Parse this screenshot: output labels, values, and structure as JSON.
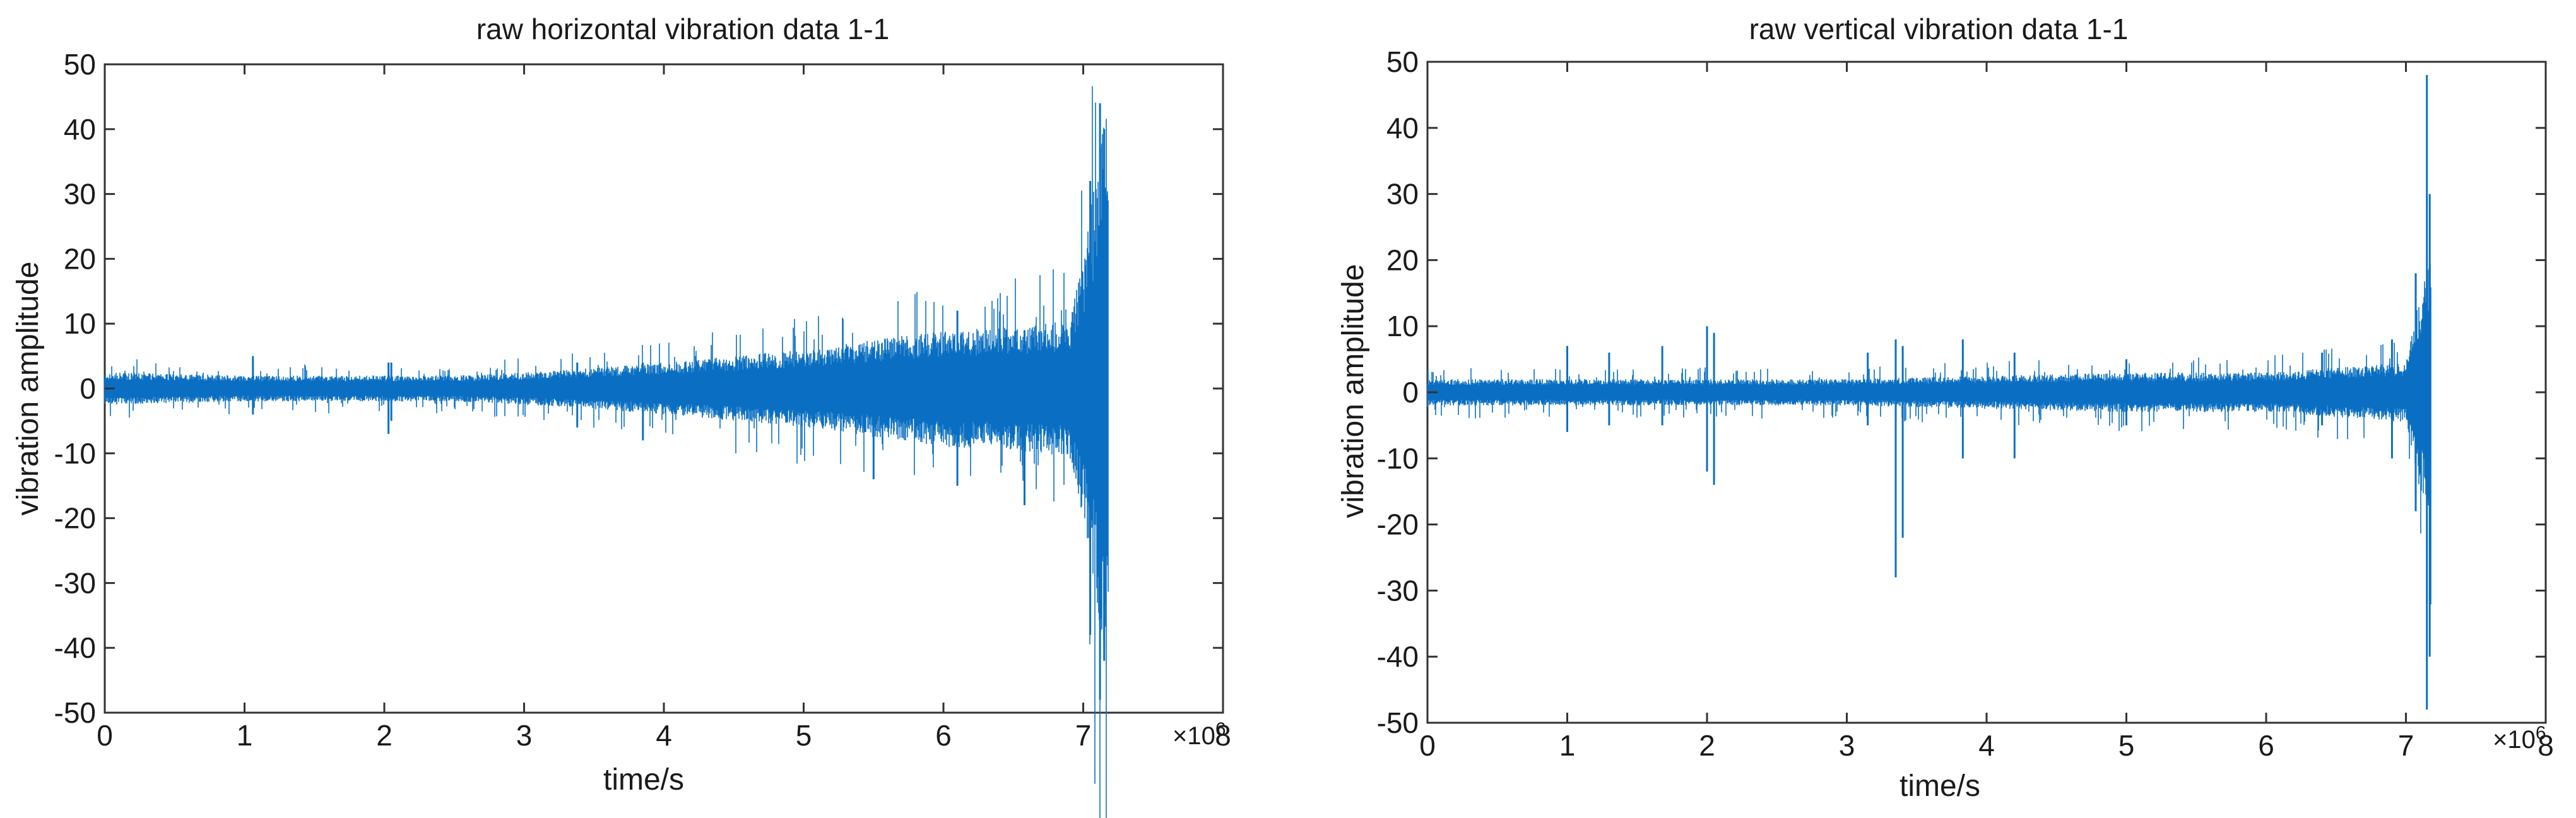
{
  "page": {
    "background_color": "#ffffff",
    "line_color": "#0a6fc2",
    "axis_color": "#333333",
    "text_color": "#1a1a1a"
  },
  "chart_data": [
    {
      "type": "line",
      "title": "raw horizontal vibration data 1-1",
      "xlabel": "time/s",
      "ylabel": "vibration amplitude",
      "x_multiplier_label": "×10",
      "x_multiplier_exponent": "6",
      "xlim": [
        0,
        8
      ],
      "ylim": [
        -50,
        50
      ],
      "x_ticks": [
        "0",
        "1",
        "2",
        "3",
        "4",
        "5",
        "6",
        "7",
        "8"
      ],
      "y_ticks": [
        "50",
        "40",
        "30",
        "20",
        "10",
        "0",
        "-10",
        "-20",
        "-30",
        "-40",
        "-50"
      ],
      "grid": false,
      "series": [
        {
          "x_end": 7.18,
          "envelope": [
            {
              "x": 0.0,
              "amp": 2.5
            },
            {
              "x": 1.0,
              "amp": 2.0
            },
            {
              "x": 2.0,
              "amp": 2.0
            },
            {
              "x": 2.5,
              "amp": 2.0
            },
            {
              "x": 3.0,
              "amp": 2.5
            },
            {
              "x": 3.5,
              "amp": 3.2
            },
            {
              "x": 4.0,
              "amp": 4.0
            },
            {
              "x": 4.5,
              "amp": 5.0
            },
            {
              "x": 5.0,
              "amp": 6.0
            },
            {
              "x": 5.5,
              "amp": 7.5
            },
            {
              "x": 6.0,
              "amp": 9.0
            },
            {
              "x": 6.5,
              "amp": 9.5
            },
            {
              "x": 6.9,
              "amp": 10.5
            },
            {
              "x": 7.02,
              "amp": 22.0
            },
            {
              "x": 7.1,
              "amp": 35.0
            },
            {
              "x": 7.18,
              "amp": 44.0
            }
          ],
          "spikes": [
            {
              "x": 1.06,
              "min": -4,
              "max": 5
            },
            {
              "x": 2.03,
              "min": -7,
              "max": 4
            },
            {
              "x": 2.05,
              "min": -5,
              "max": 4
            },
            {
              "x": 3.38,
              "min": -6,
              "max": 4
            },
            {
              "x": 3.85,
              "min": -8,
              "max": 4
            },
            {
              "x": 5.5,
              "min": -14,
              "max": 6
            },
            {
              "x": 6.1,
              "min": -15,
              "max": 12
            },
            {
              "x": 6.58,
              "min": -18,
              "max": 9
            },
            {
              "x": 7.05,
              "min": -38,
              "max": 32
            },
            {
              "x": 7.12,
              "min": -48,
              "max": 44
            },
            {
              "x": 7.15,
              "min": -42,
              "max": 40
            }
          ]
        }
      ]
    },
    {
      "type": "line",
      "title": "raw vertical vibration data 1-1",
      "xlabel": "time/s",
      "ylabel": "vibration amplitude",
      "x_multiplier_label": "×10",
      "x_multiplier_exponent": "6",
      "xlim": [
        0,
        8
      ],
      "ylim": [
        -50,
        50
      ],
      "x_ticks": [
        "0",
        "1",
        "2",
        "3",
        "4",
        "5",
        "6",
        "7",
        "8"
      ],
      "y_ticks": [
        "50",
        "40",
        "30",
        "20",
        "10",
        "0",
        "-10",
        "-20",
        "-30",
        "-40",
        "-50"
      ],
      "grid": false,
      "series": [
        {
          "x_end": 7.18,
          "envelope": [
            {
              "x": 0.0,
              "amp": 2.0
            },
            {
              "x": 1.0,
              "amp": 2.0
            },
            {
              "x": 2.0,
              "amp": 2.0
            },
            {
              "x": 3.0,
              "amp": 2.0
            },
            {
              "x": 4.0,
              "amp": 2.5
            },
            {
              "x": 5.0,
              "amp": 3.0
            },
            {
              "x": 6.0,
              "amp": 3.0
            },
            {
              "x": 7.0,
              "amp": 4.5
            },
            {
              "x": 7.1,
              "amp": 15.0
            },
            {
              "x": 7.18,
              "amp": 20.0
            }
          ],
          "spikes": [
            {
              "x": 1.0,
              "min": -6,
              "max": 7
            },
            {
              "x": 1.3,
              "min": -5,
              "max": 6
            },
            {
              "x": 1.68,
              "min": -5,
              "max": 7
            },
            {
              "x": 2.0,
              "min": -12,
              "max": 10
            },
            {
              "x": 2.05,
              "min": -14,
              "max": 9
            },
            {
              "x": 3.15,
              "min": -5,
              "max": 6
            },
            {
              "x": 3.35,
              "min": -28,
              "max": 8
            },
            {
              "x": 3.4,
              "min": -22,
              "max": 7
            },
            {
              "x": 3.83,
              "min": -10,
              "max": 8
            },
            {
              "x": 4.2,
              "min": -10,
              "max": 6
            },
            {
              "x": 5.0,
              "min": -5,
              "max": 5
            },
            {
              "x": 6.4,
              "min": -5,
              "max": 6
            },
            {
              "x": 6.9,
              "min": -10,
              "max": 8
            },
            {
              "x": 7.07,
              "min": -18,
              "max": 18
            },
            {
              "x": 7.15,
              "min": -48,
              "max": 48
            },
            {
              "x": 7.17,
              "min": -40,
              "max": 30
            }
          ]
        }
      ]
    }
  ]
}
